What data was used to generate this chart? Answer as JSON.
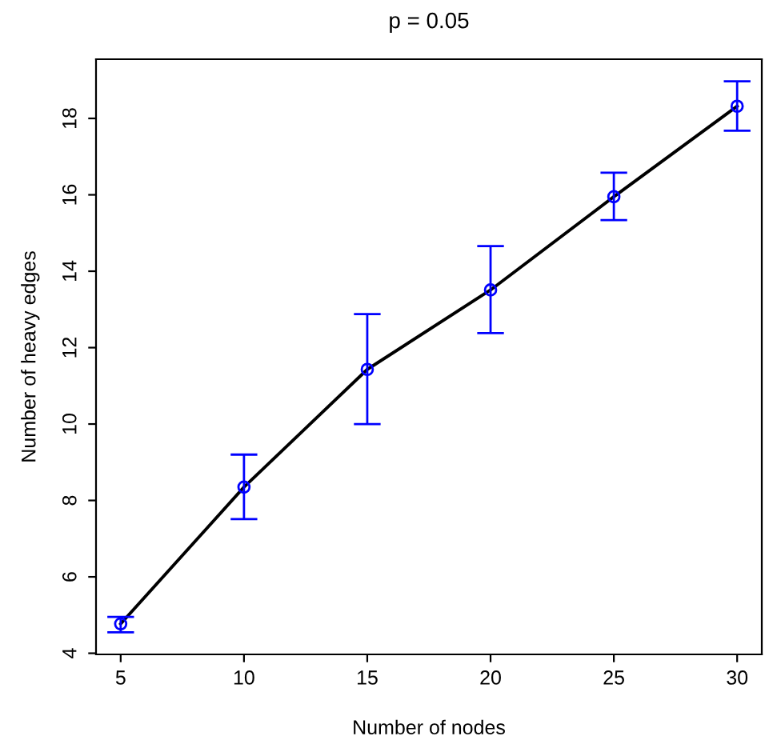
{
  "chart_data": {
    "type": "line",
    "title": "p = 0.05",
    "xlabel": "Number of nodes",
    "ylabel": "Number of heavy edges",
    "x": [
      5,
      10,
      15,
      20,
      25,
      30
    ],
    "series": [
      {
        "color": "#000000",
        "colors": [
          "#0000ff",
          "#0000ff",
          "#0000ff",
          "#0000ff",
          "#0000ff",
          "#0000ff"
        ],
        "values": [
          4.77,
          8.35,
          11.43,
          13.51,
          15.95,
          18.32
        ],
        "errors": [
          [
            4.55,
            4.95
          ],
          [
            7.51,
            9.2
          ],
          [
            10.0,
            12.88
          ],
          [
            12.38,
            14.66
          ],
          [
            15.34,
            16.58
          ],
          [
            17.68,
            18.97
          ]
        ]
      }
    ],
    "xlim": [
      4,
      31
    ],
    "ylim": [
      3.97,
      19.55
    ],
    "xticks": [
      5,
      10,
      15,
      20,
      25,
      30
    ],
    "yticks": [
      4,
      6,
      8,
      10,
      12,
      14,
      16,
      18
    ],
    "marker": "circle",
    "line_style": "solid",
    "grid": false,
    "legend": false
  }
}
